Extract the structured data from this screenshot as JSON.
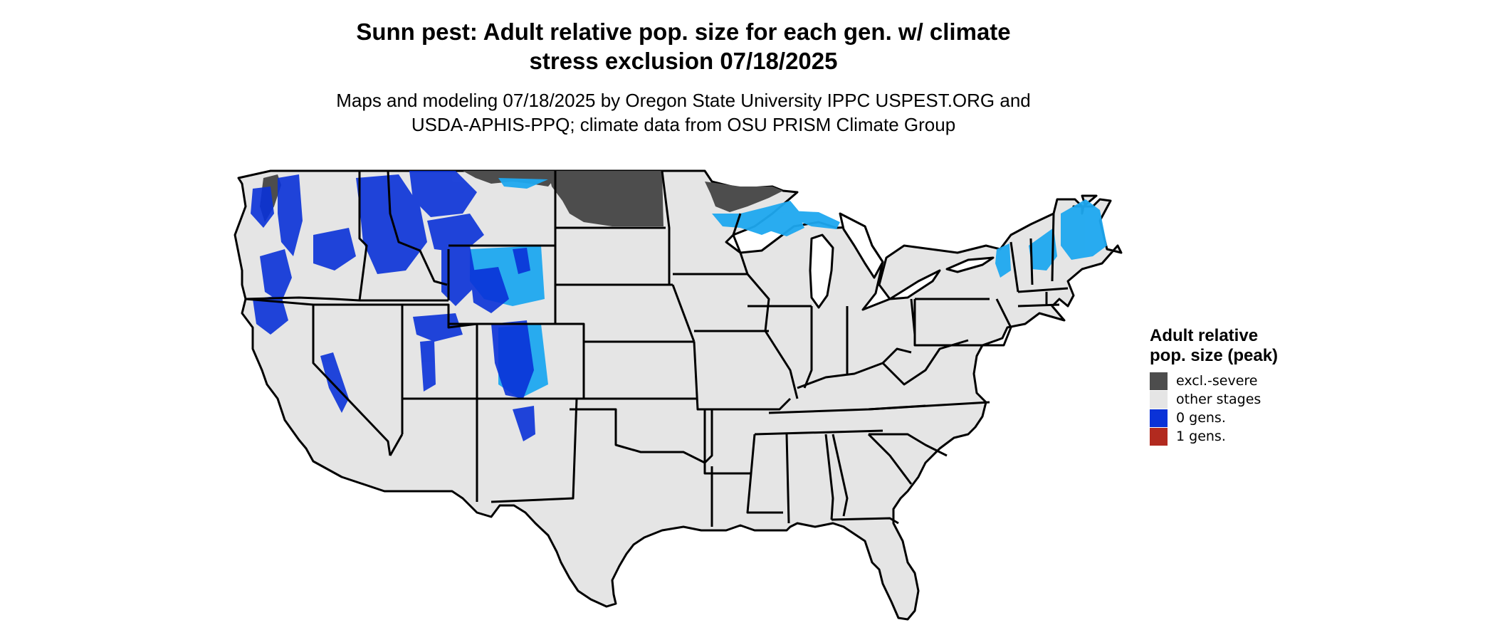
{
  "title_line1": "Sunn pest: Adult relative pop. size for each gen. w/ climate",
  "title_line2": "stress exclusion 07/18/2025",
  "subtitle_line1": "Maps and modeling 07/18/2025 by Oregon State University IPPC USPEST.ORG and",
  "subtitle_line2": "USDA-APHIS-PPQ; climate data from OSU PRISM Climate Group",
  "legend": {
    "title": "Adult relative pop. size (peak)",
    "items": [
      {
        "label": "excl.-severe",
        "color": "#4d4d4d"
      },
      {
        "label": "other stages",
        "color": "#e5e5e5"
      },
      {
        "label": "0 gens.",
        "color": "#0a32d8"
      },
      {
        "label": "1 gens.",
        "color": "#b22a1f"
      }
    ]
  },
  "colors": {
    "land": "#e5e5e5",
    "excluded": "#4d4d4d",
    "zero_gens_dark": "#0a32d8",
    "zero_gens_light": "#1ea8f0",
    "border": "#000000"
  }
}
